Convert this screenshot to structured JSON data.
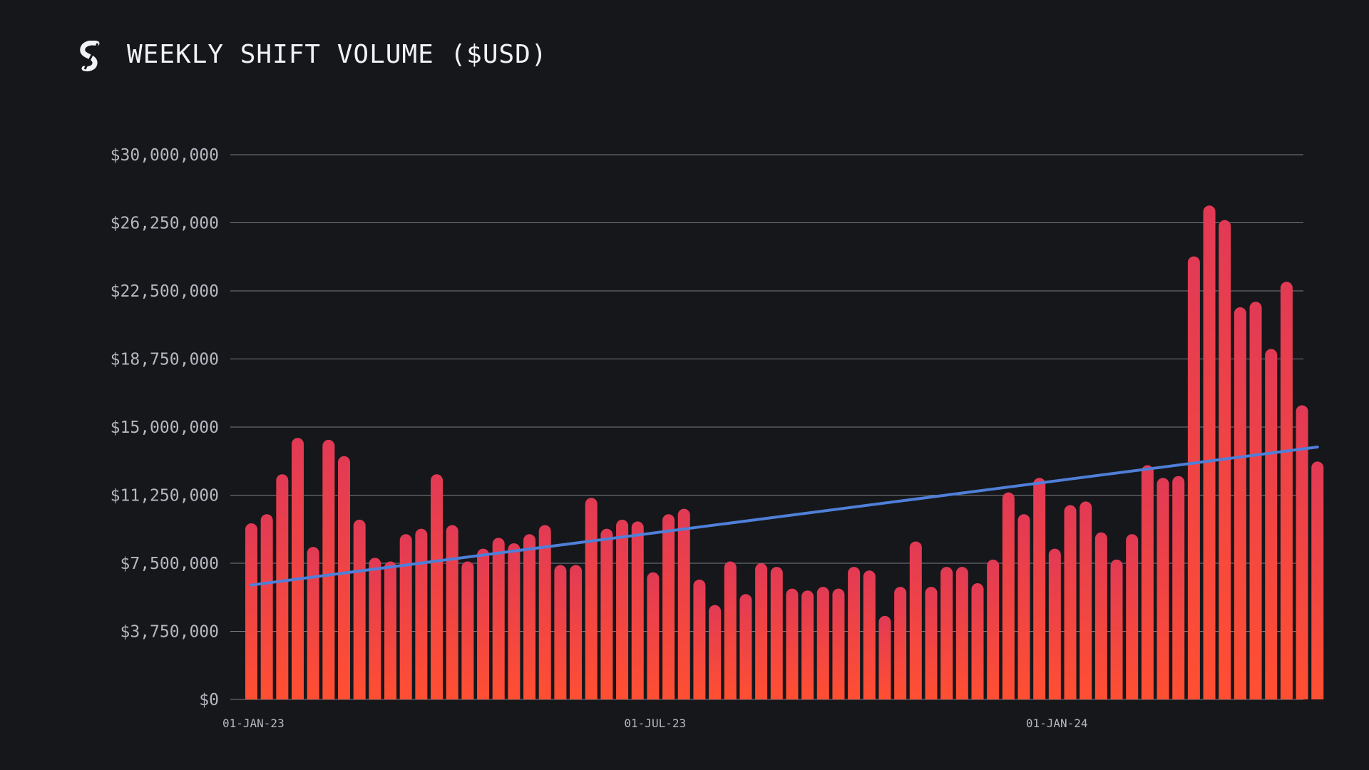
{
  "header": {
    "title": "WEEKLY SHIFT VOLUME ($USD)",
    "logo_icon": "shift-logo-icon"
  },
  "colors": {
    "background": "#16171b",
    "bar_top": "#e23a55",
    "bar_bottom": "#ff4f32",
    "trend_line": "#4f7fd8",
    "grid": "#8c8f96"
  },
  "chart_data": {
    "type": "bar",
    "title": "WEEKLY SHIFT VOLUME ($USD)",
    "xlabel": "",
    "ylabel": "",
    "ylim": [
      0,
      30000000
    ],
    "yticks": [
      0,
      3750000,
      7500000,
      11250000,
      15000000,
      18750000,
      22500000,
      26250000,
      30000000
    ],
    "ytick_labels": [
      "$0",
      "$3,750,000",
      "$7,500,000",
      "$11,250,000",
      "$15,000,000",
      "$18,750,000",
      "$22,500,000",
      "$26,250,000",
      "$30,000,000"
    ],
    "xtick_labels": [
      {
        "label": "01-JAN-23",
        "index": 0
      },
      {
        "label": "01-JUL-23",
        "index": 26
      },
      {
        "label": "01-JAN-24",
        "index": 52
      }
    ],
    "x_start": "01-JAN-23",
    "x_interval": "weekly",
    "grid": true,
    "values": [
      9700000,
      10200000,
      12400000,
      14400000,
      8400000,
      14300000,
      13400000,
      9900000,
      7800000,
      7600000,
      9100000,
      9400000,
      12400000,
      9600000,
      7600000,
      8300000,
      8900000,
      8600000,
      9100000,
      9600000,
      7400000,
      7400000,
      11100000,
      9400000,
      9900000,
      9800000,
      7000000,
      10200000,
      10500000,
      6600000,
      5200000,
      7600000,
      5800000,
      7500000,
      7300000,
      6100000,
      6000000,
      6200000,
      6100000,
      7300000,
      7100000,
      4600000,
      6200000,
      8700000,
      6200000,
      7300000,
      7300000,
      6400000,
      7700000,
      11400000,
      10200000,
      12200000,
      8300000,
      10700000,
      10900000,
      9200000,
      7700000,
      9100000,
      12900000,
      12200000,
      12300000,
      24400000,
      27200000,
      26400000,
      21600000,
      21900000,
      19300000,
      23000000,
      16200000,
      13100000
    ],
    "trend_line": {
      "start": 6300000,
      "end": 13900000
    }
  }
}
